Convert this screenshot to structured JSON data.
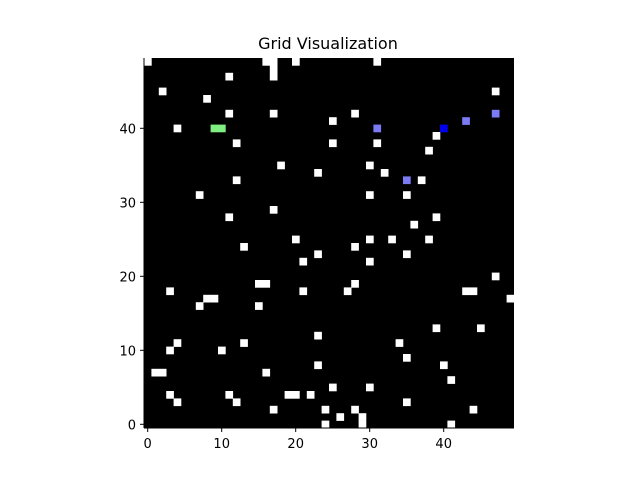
{
  "chart_data": {
    "type": "heatmap",
    "title": "Grid Visualization",
    "xlabel": "",
    "ylabel": "",
    "grid_size": [
      50,
      50
    ],
    "xlim": [
      0,
      49
    ],
    "ylim": [
      0,
      49
    ],
    "x_ticks": [
      0,
      10,
      20,
      30,
      40
    ],
    "y_ticks": [
      0,
      10,
      20,
      30,
      40
    ],
    "colors": {
      "background": "#000000",
      "obstacle": "#ffffff",
      "start": "#80ee80",
      "goal": "#0000ee",
      "path": "#7b7bf5"
    },
    "obstacles": [
      [
        0,
        49
      ],
      [
        16,
        49
      ],
      [
        17,
        49
      ],
      [
        20,
        49
      ],
      [
        31,
        49
      ],
      [
        17,
        48
      ],
      [
        11,
        47
      ],
      [
        17,
        47
      ],
      [
        2,
        45
      ],
      [
        47,
        45
      ],
      [
        8,
        44
      ],
      [
        11,
        42
      ],
      [
        17,
        42
      ],
      [
        28,
        42
      ],
      [
        25,
        41
      ],
      [
        4,
        40
      ],
      [
        39,
        39
      ],
      [
        12,
        38
      ],
      [
        25,
        38
      ],
      [
        31,
        38
      ],
      [
        38,
        37
      ],
      [
        18,
        35
      ],
      [
        30,
        35
      ],
      [
        23,
        34
      ],
      [
        32,
        34
      ],
      [
        12,
        33
      ],
      [
        37,
        33
      ],
      [
        7,
        31
      ],
      [
        30,
        31
      ],
      [
        35,
        31
      ],
      [
        17,
        29
      ],
      [
        11,
        28
      ],
      [
        39,
        28
      ],
      [
        36,
        27
      ],
      [
        20,
        25
      ],
      [
        30,
        25
      ],
      [
        33,
        25
      ],
      [
        38,
        25
      ],
      [
        13,
        24
      ],
      [
        28,
        24
      ],
      [
        23,
        23
      ],
      [
        35,
        23
      ],
      [
        21,
        22
      ],
      [
        30,
        22
      ],
      [
        47,
        20
      ],
      [
        15,
        19
      ],
      [
        16,
        19
      ],
      [
        28,
        19
      ],
      [
        3,
        18
      ],
      [
        21,
        18
      ],
      [
        27,
        18
      ],
      [
        43,
        18
      ],
      [
        44,
        18
      ],
      [
        8,
        17
      ],
      [
        9,
        17
      ],
      [
        49,
        17
      ],
      [
        7,
        16
      ],
      [
        15,
        16
      ],
      [
        39,
        13
      ],
      [
        45,
        13
      ],
      [
        23,
        12
      ],
      [
        4,
        11
      ],
      [
        13,
        11
      ],
      [
        34,
        11
      ],
      [
        3,
        10
      ],
      [
        10,
        10
      ],
      [
        35,
        9
      ],
      [
        23,
        8
      ],
      [
        40,
        8
      ],
      [
        1,
        7
      ],
      [
        2,
        7
      ],
      [
        16,
        7
      ],
      [
        41,
        6
      ],
      [
        25,
        5
      ],
      [
        30,
        5
      ],
      [
        3,
        4
      ],
      [
        11,
        4
      ],
      [
        19,
        4
      ],
      [
        20,
        4
      ],
      [
        22,
        4
      ],
      [
        4,
        3
      ],
      [
        12,
        3
      ],
      [
        35,
        3
      ],
      [
        17,
        2
      ],
      [
        24,
        2
      ],
      [
        28,
        2
      ],
      [
        44,
        2
      ],
      [
        26,
        1
      ],
      [
        29,
        1
      ],
      [
        24,
        0
      ],
      [
        29,
        0
      ],
      [
        41,
        0
      ]
    ],
    "start": [
      [
        9,
        40
      ],
      [
        10,
        40
      ]
    ],
    "goal": [
      [
        40,
        40
      ]
    ],
    "path": [
      [
        31,
        40
      ],
      [
        35,
        33
      ],
      [
        43,
        41
      ],
      [
        47,
        42
      ]
    ]
  }
}
